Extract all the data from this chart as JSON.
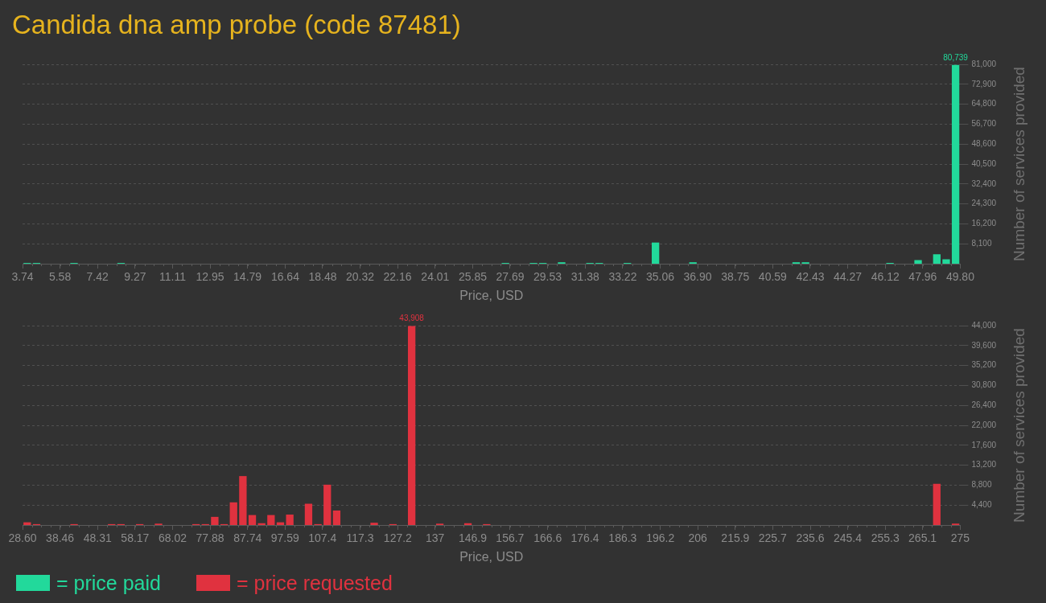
{
  "chart_data": [
    {
      "type": "histogram",
      "title": "Candida dna amp probe (code 87481)",
      "xlabel": "Price, USD",
      "ylabel": "Number of services provided",
      "bins": [
        3.74,
        4.2,
        4.66,
        5.12,
        5.58,
        6.04,
        6.5,
        6.96,
        7.42,
        7.89,
        8.35,
        8.81,
        9.27,
        9.73,
        10.19,
        10.65,
        11.11,
        11.57,
        12.03,
        12.49,
        12.95,
        13.41,
        13.87,
        14.33,
        14.79,
        15.26,
        15.72,
        16.18,
        16.64,
        17.1,
        17.56,
        18.02,
        18.48,
        18.94,
        19.4,
        19.86,
        20.32,
        20.78,
        21.24,
        21.7,
        22.16,
        22.62,
        23.09,
        23.55,
        24.01,
        24.47,
        24.93,
        25.39,
        25.85,
        26.31,
        26.77,
        27.23,
        27.69,
        28.15,
        28.61,
        29.07,
        29.53,
        29.99,
        30.45,
        30.92,
        31.38,
        31.84,
        32.3,
        32.76,
        33.22,
        33.68,
        34.14,
        34.6,
        35.06,
        35.52,
        35.98,
        36.44,
        36.9,
        37.36,
        37.82,
        38.29,
        38.75,
        39.21,
        39.67,
        40.13,
        40.59,
        41.05,
        41.51,
        41.97,
        42.43,
        42.89,
        43.35,
        43.81,
        44.27,
        44.73,
        45.19,
        45.65,
        46.12,
        46.58,
        47.04,
        47.5,
        47.96,
        48.42,
        48.88,
        49.34,
        49.8
      ],
      "series": [
        {
          "name": "= price paid",
          "color": "#22d99b",
          "values": [
            300,
            300,
            0,
            0,
            0,
            300,
            0,
            0,
            0,
            0,
            300,
            0,
            0,
            0,
            0,
            0,
            0,
            0,
            0,
            0,
            0,
            0,
            0,
            0,
            0,
            0,
            0,
            0,
            0,
            0,
            0,
            0,
            0,
            0,
            0,
            0,
            0,
            0,
            0,
            0,
            0,
            0,
            0,
            0,
            0,
            0,
            0,
            0,
            0,
            0,
            0,
            300,
            0,
            0,
            300,
            300,
            0,
            600,
            0,
            0,
            300,
            300,
            0,
            0,
            300,
            0,
            0,
            8600,
            0,
            0,
            0,
            600,
            0,
            0,
            0,
            0,
            0,
            0,
            0,
            0,
            0,
            0,
            600,
            600,
            0,
            0,
            0,
            0,
            0,
            0,
            0,
            0,
            300,
            0,
            0,
            1500,
            0,
            3800,
            1800,
            80739
          ],
          "value_labels": [
            null,
            null,
            null,
            null,
            null,
            null,
            null,
            null,
            null,
            null,
            null,
            null,
            null,
            null,
            null,
            null,
            null,
            null,
            null,
            null,
            null,
            null,
            null,
            null,
            null,
            null,
            null,
            null,
            null,
            null,
            null,
            null,
            null,
            null,
            null,
            null,
            null,
            null,
            null,
            null,
            null,
            null,
            null,
            null,
            null,
            null,
            null,
            null,
            null,
            null,
            null,
            null,
            null,
            null,
            null,
            null,
            null,
            null,
            null,
            null,
            null,
            null,
            null,
            null,
            null,
            null,
            null,
            null,
            null,
            null,
            null,
            null,
            null,
            null,
            null,
            null,
            null,
            null,
            null,
            null,
            null,
            null,
            null,
            null,
            null,
            null,
            null,
            null,
            null,
            null,
            null,
            null,
            null,
            null,
            null,
            null,
            null,
            null,
            null,
            "80,739"
          ]
        }
      ],
      "xlim": [
        3.74,
        49.8
      ],
      "xticks": [
        3.74,
        5.58,
        7.42,
        9.27,
        11.11,
        12.95,
        14.79,
        16.64,
        18.48,
        20.32,
        22.16,
        24.01,
        25.85,
        27.69,
        29.53,
        31.38,
        33.22,
        35.06,
        {
          "value": 36.9,
          "label": "36.90"
        },
        38.75,
        40.59,
        42.43,
        44.27,
        46.12,
        47.96,
        {
          "value": 49.8,
          "label": "49.80"
        }
      ],
      "ylim": [
        0,
        81000
      ],
      "yticks": [
        {
          "value": 8100,
          "label": "8,100"
        },
        {
          "value": 16200,
          "label": "16,200"
        },
        {
          "value": 24300,
          "label": "24,300"
        },
        {
          "value": 32400,
          "label": "32,400"
        },
        {
          "value": 40500,
          "label": "40,500"
        },
        {
          "value": 48600,
          "label": "48,600"
        },
        {
          "value": 56700,
          "label": "56,700"
        },
        {
          "value": 64800,
          "label": "64,800"
        },
        {
          "value": 72900,
          "label": "72,900"
        },
        {
          "value": 81000,
          "label": "81,000"
        }
      ],
      "grid": "y",
      "legend": "bottom left"
    },
    {
      "type": "histogram",
      "xlabel": "Price, USD",
      "ylabel": "Number of services provided",
      "bins": [
        28.6,
        31.06,
        33.53,
        35.99,
        38.46,
        40.92,
        43.38,
        45.85,
        48.31,
        50.78,
        53.24,
        55.7,
        58.17,
        60.63,
        63.1,
        65.56,
        68.02,
        70.49,
        72.95,
        75.42,
        77.88,
        80.34,
        82.81,
        85.27,
        87.74,
        90.2,
        92.66,
        95.13,
        97.59,
        100.06,
        102.52,
        104.98,
        107.45,
        109.91,
        112.38,
        114.84,
        117.3,
        119.77,
        122.23,
        124.7,
        127.16,
        129.62,
        132.09,
        134.55,
        137.02,
        139.48,
        141.94,
        144.41,
        146.87,
        149.34,
        151.8,
        154.26,
        156.73,
        159.19,
        161.66,
        164.12,
        166.58,
        169.05,
        171.51,
        173.98,
        176.44,
        178.9,
        181.37,
        183.83,
        186.3,
        188.76,
        191.22,
        193.69,
        196.15,
        198.62,
        201.08,
        203.54,
        206.01,
        208.47,
        210.94,
        213.4,
        215.86,
        218.33,
        220.79,
        223.26,
        225.72,
        228.18,
        230.65,
        233.11,
        235.58,
        238.04,
        240.5,
        242.97,
        245.43,
        247.9,
        250.36,
        252.82,
        255.29,
        257.75,
        260.22,
        262.68,
        265.14,
        267.61,
        270.07,
        272.54,
        275
      ],
      "series": [
        {
          "name": "= price requested",
          "color": "#e0323f",
          "values": [
            600,
            200,
            0,
            0,
            0,
            200,
            0,
            0,
            0,
            200,
            200,
            0,
            200,
            0,
            300,
            0,
            0,
            0,
            200,
            200,
            1800,
            200,
            5000,
            10800,
            2200,
            400,
            2200,
            600,
            2300,
            0,
            4700,
            200,
            8900,
            3200,
            0,
            0,
            0,
            500,
            0,
            200,
            0,
            43908,
            0,
            0,
            300,
            0,
            0,
            400,
            0,
            200,
            0,
            0,
            0,
            0,
            0,
            0,
            0,
            0,
            0,
            0,
            0,
            0,
            0,
            0,
            0,
            0,
            0,
            0,
            0,
            0,
            0,
            0,
            0,
            0,
            0,
            0,
            0,
            0,
            0,
            0,
            0,
            0,
            0,
            0,
            0,
            0,
            0,
            0,
            0,
            0,
            0,
            0,
            0,
            0,
            0,
            0,
            0,
            9100,
            0,
            300
          ],
          "value_labels": [
            null,
            null,
            null,
            null,
            null,
            null,
            null,
            null,
            null,
            null,
            null,
            null,
            null,
            null,
            null,
            null,
            null,
            null,
            null,
            null,
            null,
            null,
            null,
            null,
            null,
            null,
            null,
            null,
            null,
            null,
            null,
            null,
            null,
            null,
            null,
            null,
            null,
            null,
            null,
            null,
            null,
            "43,908",
            null,
            null,
            null,
            null,
            null,
            null,
            null,
            null,
            null,
            null,
            null,
            null,
            null,
            null,
            null,
            null,
            null,
            null,
            null,
            null,
            null,
            null,
            null,
            null,
            null,
            null,
            null,
            null,
            null,
            null,
            null,
            null,
            null,
            null,
            null,
            null,
            null,
            null,
            null,
            null,
            null,
            null,
            null,
            null,
            null,
            null,
            null,
            null,
            null,
            null,
            null,
            null,
            null,
            null,
            null,
            null,
            null,
            null
          ]
        }
      ],
      "xlim": [
        28.6,
        275
      ],
      "xticks": [
        {
          "value": 28.6,
          "label": "28.60"
        },
        38.46,
        48.31,
        58.17,
        68.02,
        77.88,
        87.74,
        97.59,
        107.4,
        117.3,
        127.2,
        137,
        146.9,
        156.7,
        166.6,
        176.4,
        186.3,
        196.2,
        206,
        215.9,
        225.7,
        235.6,
        245.4,
        255.3,
        265.1,
        275
      ],
      "ylim": [
        0,
        44000
      ],
      "yticks": [
        {
          "value": 4400,
          "label": "4,400"
        },
        {
          "value": 8800,
          "label": "8,800"
        },
        {
          "value": 13200,
          "label": "13,200"
        },
        {
          "value": 17600,
          "label": "17,600"
        },
        {
          "value": 22000,
          "label": "22,000"
        },
        {
          "value": 26400,
          "label": "26,400"
        },
        {
          "value": 30800,
          "label": "30,800"
        },
        {
          "value": 35200,
          "label": "35,200"
        },
        {
          "value": 39600,
          "label": "39,600"
        },
        {
          "value": 44000,
          "label": "44,000"
        }
      ],
      "grid": "y",
      "legend": "bottom left"
    }
  ]
}
